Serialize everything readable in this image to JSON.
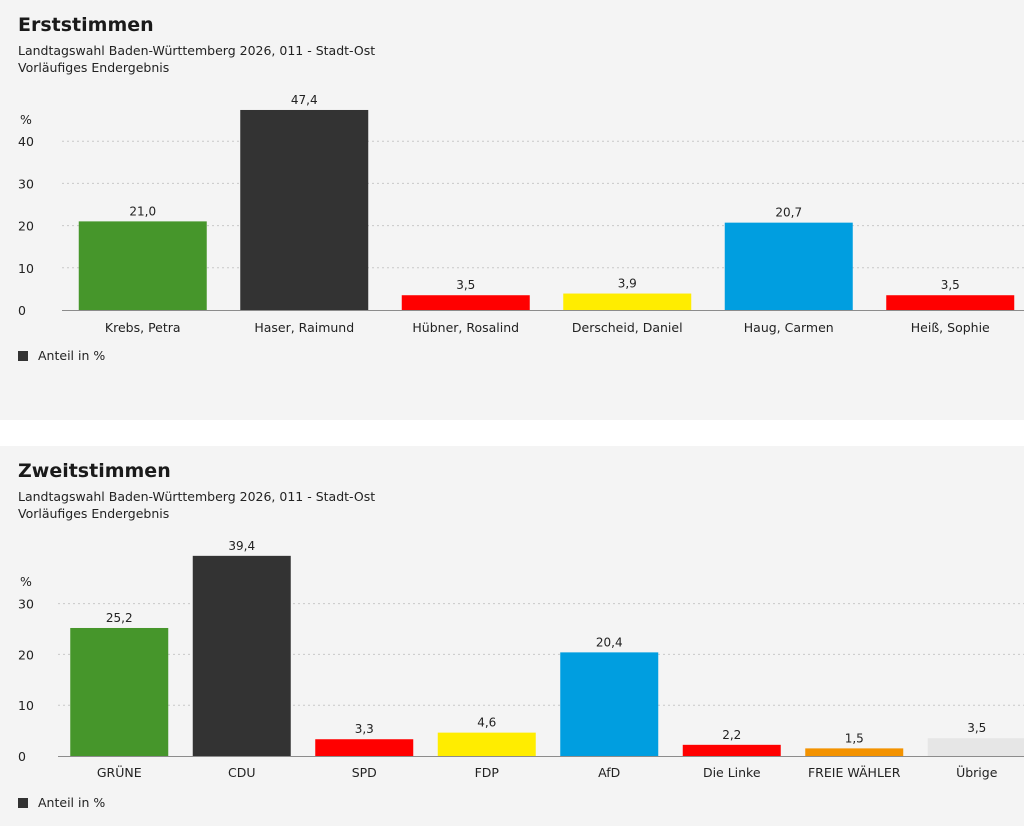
{
  "chart_data": [
    {
      "type": "bar",
      "title": "Erststimmen",
      "subtitle_1": "Landtagswahl Baden-Württemberg 2026, 011 - Stadt-Ost",
      "subtitle_2": "Vorläufiges Endergebnis",
      "ylabel": "%",
      "ylim": [
        0,
        50
      ],
      "yticks": [
        0,
        10,
        20,
        30,
        40
      ],
      "categories": [
        "Krebs, Petra",
        "Haser, Raimund",
        "Hübner, Rosalind",
        "Derscheid, Daniel",
        "Haug, Carmen",
        "Heiß, Sophie"
      ],
      "values": [
        21.0,
        47.4,
        3.5,
        3.9,
        20.7,
        3.5
      ],
      "value_labels": [
        "21,0",
        "47,4",
        "3,5",
        "3,9",
        "20,7",
        "3,5"
      ],
      "colors": [
        "#46962b",
        "#333333",
        "#ff0000",
        "#ffed00",
        "#009ee0",
        "#ff0000"
      ],
      "legend": {
        "label": "Anteil in %",
        "color": "#333333"
      },
      "grid": true
    },
    {
      "type": "bar",
      "title": "Zweitstimmen",
      "subtitle_1": "Landtagswahl Baden-Württemberg 2026, 011 - Stadt-Ost",
      "subtitle_2": "Vorläufiges Endergebnis",
      "ylabel": "%",
      "ylim": [
        0,
        40
      ],
      "yticks": [
        0,
        10,
        20,
        30
      ],
      "categories": [
        "GRÜNE",
        "CDU",
        "SPD",
        "FDP",
        "AfD",
        "Die Linke",
        "FREIE WÄHLER",
        "Übrige"
      ],
      "values": [
        25.2,
        39.4,
        3.3,
        4.6,
        20.4,
        2.2,
        1.5,
        3.5
      ],
      "value_labels": [
        "25,2",
        "39,4",
        "3,3",
        "4,6",
        "20,4",
        "2,2",
        "1,5",
        "3,5"
      ],
      "colors": [
        "#46962b",
        "#333333",
        "#ff0000",
        "#ffed00",
        "#009ee0",
        "#ff0000",
        "#f39200",
        "#e6e6e6"
      ],
      "legend": {
        "label": "Anteil in %",
        "color": "#333333"
      },
      "grid": true
    }
  ]
}
